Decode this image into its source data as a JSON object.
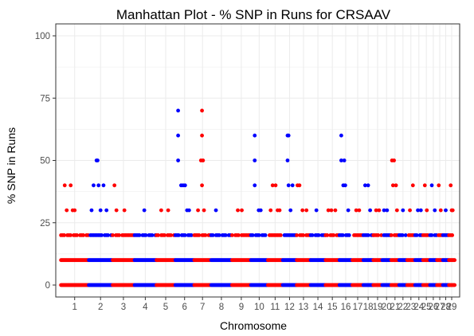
{
  "chart_data": {
    "type": "scatter",
    "title": "Manhattan Plot - % SNP in Runs for  CRSAAV",
    "xlabel": "Chromosome",
    "ylabel": "% SNP in Runs",
    "ylim": [
      0,
      100
    ],
    "y_ticks": [
      "0",
      "25",
      "50",
      "75",
      "100"
    ],
    "grid": true,
    "legend": "none",
    "colors": {
      "odd": "#ff0000",
      "even": "#0000ff"
    },
    "chromosomes": [
      {
        "label": "1",
        "start": 0,
        "length": 28,
        "color": "#ff0000",
        "peaks": [
          [
            4,
            40
          ],
          [
            6,
            30
          ],
          [
            10,
            40
          ],
          [
            12,
            30
          ],
          [
            14,
            30
          ]
        ]
      },
      {
        "label": "2",
        "start": 28,
        "length": 24,
        "color": "#0000ff",
        "peaks": [
          [
            3,
            30
          ],
          [
            5,
            40
          ],
          [
            8,
            50
          ],
          [
            9,
            50
          ],
          [
            10,
            40
          ],
          [
            12,
            30
          ],
          [
            15,
            40
          ],
          [
            18,
            30
          ]
        ]
      },
      {
        "label": "3",
        "start": 52,
        "length": 22,
        "color": "#ff0000",
        "peaks": [
          [
            2,
            40
          ],
          [
            4,
            30
          ],
          [
            12,
            30
          ]
        ]
      },
      {
        "label": "4",
        "start": 74,
        "length": 22,
        "color": "#0000ff",
        "peaks": [
          [
            10,
            30
          ]
        ]
      },
      {
        "label": "5",
        "start": 96,
        "length": 19,
        "color": "#ff0000",
        "peaks": [
          [
            5,
            30
          ],
          [
            12,
            30
          ]
        ]
      },
      {
        "label": "6",
        "start": 115,
        "length": 19,
        "color": "#0000ff",
        "peaks": [
          [
            3,
            70
          ],
          [
            3,
            60
          ],
          [
            3,
            50
          ],
          [
            6,
            40
          ],
          [
            8,
            40
          ],
          [
            10,
            40
          ],
          [
            12,
            30
          ],
          [
            14,
            30
          ]
        ]
      },
      {
        "label": "7",
        "start": 134,
        "length": 17,
        "color": "#ff0000",
        "peaks": [
          [
            4,
            30
          ],
          [
            8,
            70
          ],
          [
            8,
            60
          ],
          [
            7,
            50
          ],
          [
            9,
            50
          ],
          [
            8,
            40
          ],
          [
            10,
            30
          ]
        ]
      },
      {
        "label": "8",
        "start": 151,
        "length": 21,
        "color": "#0000ff",
        "peaks": [
          [
            5,
            30
          ]
        ]
      },
      {
        "label": "9",
        "start": 172,
        "length": 19,
        "color": "#ff0000",
        "peaks": [
          [
            6,
            30
          ],
          [
            10,
            30
          ]
        ]
      },
      {
        "label": "10",
        "start": 191,
        "length": 17,
        "color": "#0000ff",
        "peaks": [
          [
            4,
            60
          ],
          [
            4,
            50
          ],
          [
            4,
            40
          ],
          [
            8,
            30
          ],
          [
            10,
            30
          ]
        ]
      },
      {
        "label": "11",
        "start": 208,
        "length": 15,
        "color": "#ff0000",
        "peaks": [
          [
            3,
            30
          ],
          [
            5,
            40
          ],
          [
            8,
            40
          ],
          [
            10,
            30
          ],
          [
            12,
            30
          ]
        ]
      },
      {
        "label": "12",
        "start": 223,
        "length": 14,
        "color": "#0000ff",
        "peaks": [
          [
            5,
            60
          ],
          [
            6,
            60
          ],
          [
            5,
            50
          ],
          [
            6,
            40
          ],
          [
            8,
            30
          ],
          [
            10,
            40
          ]
        ]
      },
      {
        "label": "13",
        "start": 237,
        "length": 14,
        "color": "#ff0000",
        "peaks": [
          [
            1,
            40
          ],
          [
            3,
            40
          ],
          [
            6,
            30
          ],
          [
            10,
            30
          ]
        ]
      },
      {
        "label": "14",
        "start": 251,
        "length": 15,
        "color": "#0000ff",
        "peaks": [
          [
            6,
            30
          ]
        ]
      },
      {
        "label": "15",
        "start": 266,
        "length": 14,
        "color": "#ff0000",
        "peaks": [
          [
            3,
            30
          ],
          [
            6,
            30
          ],
          [
            10,
            30
          ]
        ]
      },
      {
        "label": "16",
        "start": 280,
        "length": 13,
        "color": "#0000ff",
        "peaks": [
          [
            2,
            60
          ],
          [
            2,
            50
          ],
          [
            4,
            40
          ],
          [
            5,
            50
          ],
          [
            6,
            40
          ],
          [
            9,
            30
          ]
        ]
      },
      {
        "label": "17",
        "start": 293,
        "length": 11,
        "color": "#ff0000",
        "peaks": [
          [
            4,
            30
          ],
          [
            7,
            30
          ]
        ]
      },
      {
        "label": "18",
        "start": 304,
        "length": 10,
        "color": "#0000ff",
        "peaks": [
          [
            2,
            40
          ],
          [
            5,
            40
          ],
          [
            7,
            30
          ]
        ]
      },
      {
        "label": "19",
        "start": 314,
        "length": 9,
        "color": "#ff0000",
        "peaks": [
          [
            3,
            30
          ],
          [
            6,
            30
          ]
        ]
      },
      {
        "label": "20",
        "start": 323,
        "length": 9,
        "color": "#0000ff",
        "peaks": [
          [
            2,
            30
          ],
          [
            5,
            30
          ]
        ]
      },
      {
        "label": "21",
        "start": 332,
        "length": 8,
        "color": "#ff0000",
        "peaks": [
          [
            1,
            50
          ],
          [
            3,
            50
          ],
          [
            2,
            40
          ],
          [
            5,
            40
          ],
          [
            6,
            30
          ]
        ]
      },
      {
        "label": "22",
        "start": 340,
        "length": 8,
        "color": "#0000ff",
        "peaks": [
          [
            4,
            30
          ]
        ]
      },
      {
        "label": "23",
        "start": 348,
        "length": 8,
        "color": "#ff0000",
        "peaks": [
          [
            3,
            30
          ],
          [
            6,
            40
          ]
        ]
      },
      {
        "label": "24",
        "start": 356,
        "length": 8,
        "color": "#0000ff",
        "peaks": [
          [
            3,
            30
          ],
          [
            6,
            30
          ]
        ]
      },
      {
        "label": "25",
        "start": 364,
        "length": 7,
        "color": "#ff0000",
        "peaks": [
          [
            2,
            40
          ],
          [
            4,
            30
          ]
        ]
      },
      {
        "label": "26",
        "start": 371,
        "length": 7,
        "color": "#0000ff",
        "peaks": [
          [
            2,
            40
          ],
          [
            5,
            30
          ]
        ]
      },
      {
        "label": "27",
        "start": 378,
        "length": 6,
        "color": "#ff0000",
        "peaks": [
          [
            2,
            40
          ],
          [
            4,
            30
          ]
        ]
      },
      {
        "label": "28",
        "start": 384,
        "length": 6,
        "color": "#0000ff",
        "peaks": [
          [
            3,
            30
          ]
        ]
      },
      {
        "label": "29",
        "start": 390,
        "length": 6,
        "color": "#ff0000",
        "peaks": [
          [
            2,
            40
          ],
          [
            3,
            30
          ],
          [
            4,
            30
          ]
        ]
      }
    ]
  }
}
